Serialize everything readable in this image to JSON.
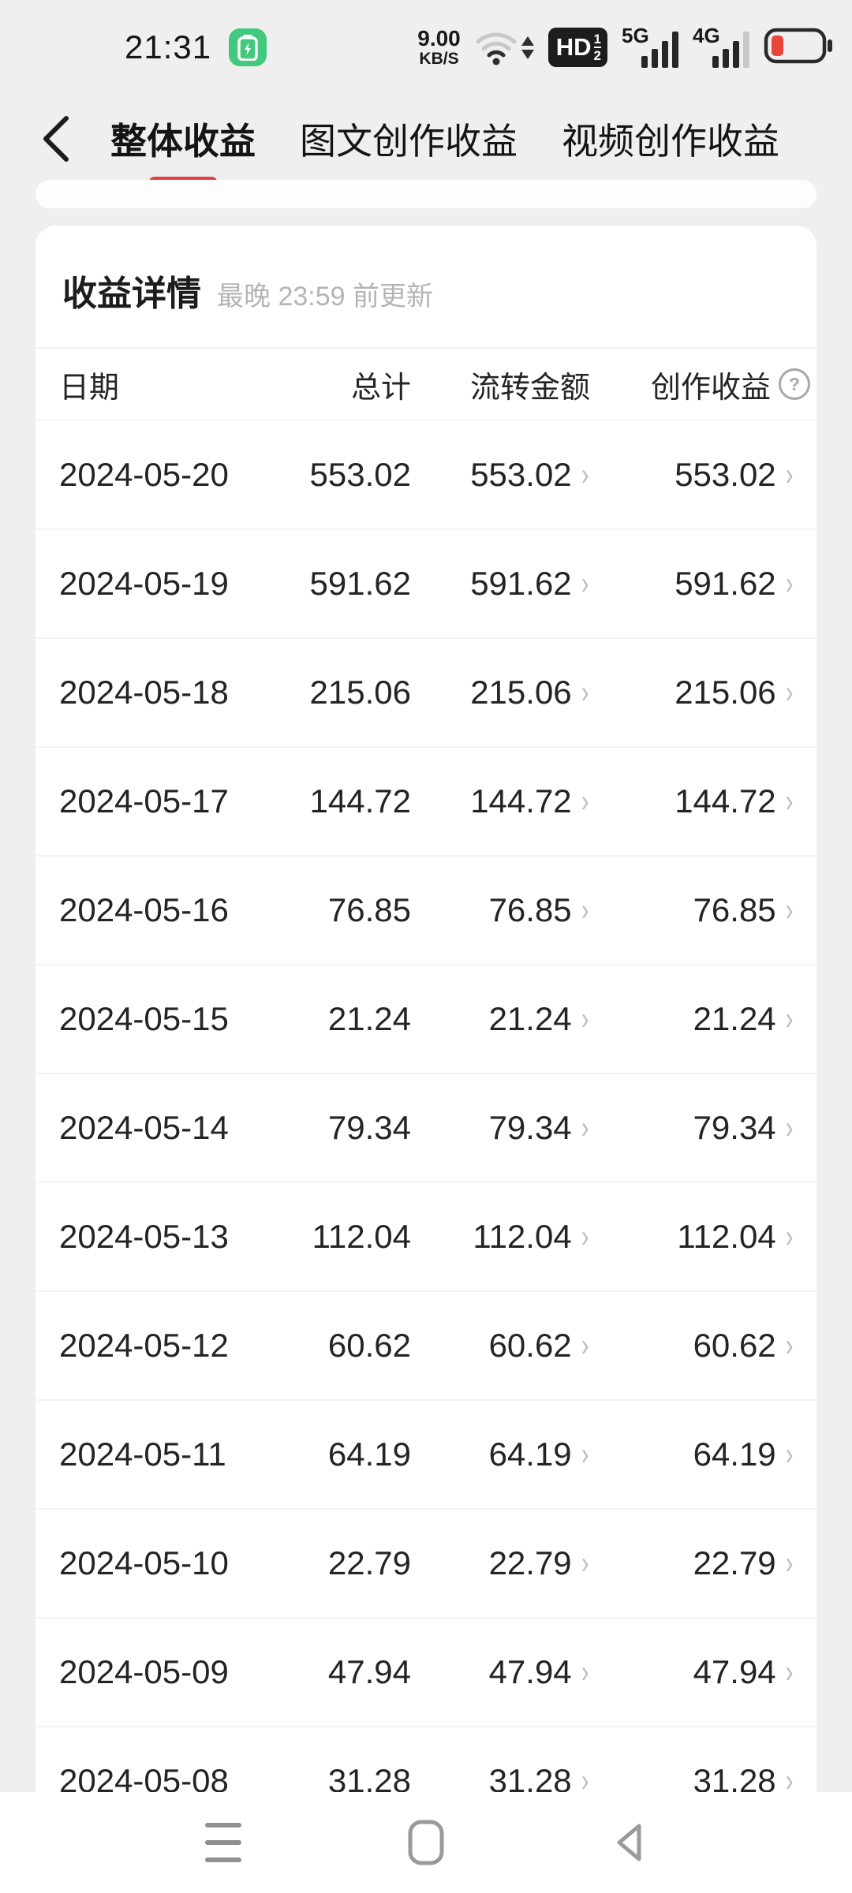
{
  "status_bar": {
    "time": "21:31",
    "net_speed_value": "9.00",
    "net_speed_unit": "KB/S",
    "hd_label": "HD",
    "hd_sup": "1",
    "hd_sub": "2",
    "sim1_label": "5G",
    "sim2_label": "4G"
  },
  "tab_bar": {
    "tabs": [
      {
        "label": "整体收益",
        "active": true
      },
      {
        "label": "图文创作收益",
        "active": false
      },
      {
        "label": "视频创作收益",
        "active": false
      }
    ]
  },
  "card": {
    "title": "收益详情",
    "subtitle": "最晚 23:59 前更新",
    "columns": {
      "date": "日期",
      "total": "总计",
      "transfer": "流转金额",
      "creation": "创作收益"
    },
    "help_icon": "?",
    "chevron": "›",
    "rows": [
      {
        "date": "2024-05-20",
        "total": "553.02",
        "transfer": "553.02",
        "creation": "553.02"
      },
      {
        "date": "2024-05-19",
        "total": "591.62",
        "transfer": "591.62",
        "creation": "591.62"
      },
      {
        "date": "2024-05-18",
        "total": "215.06",
        "transfer": "215.06",
        "creation": "215.06"
      },
      {
        "date": "2024-05-17",
        "total": "144.72",
        "transfer": "144.72",
        "creation": "144.72"
      },
      {
        "date": "2024-05-16",
        "total": "76.85",
        "transfer": "76.85",
        "creation": "76.85"
      },
      {
        "date": "2024-05-15",
        "total": "21.24",
        "transfer": "21.24",
        "creation": "21.24"
      },
      {
        "date": "2024-05-14",
        "total": "79.34",
        "transfer": "79.34",
        "creation": "79.34"
      },
      {
        "date": "2024-05-13",
        "total": "112.04",
        "transfer": "112.04",
        "creation": "112.04"
      },
      {
        "date": "2024-05-12",
        "total": "60.62",
        "transfer": "60.62",
        "creation": "60.62"
      },
      {
        "date": "2024-05-11",
        "total": "64.19",
        "transfer": "64.19",
        "creation": "64.19"
      },
      {
        "date": "2024-05-10",
        "total": "22.79",
        "transfer": "22.79",
        "creation": "22.79"
      },
      {
        "date": "2024-05-09",
        "total": "47.94",
        "transfer": "47.94",
        "creation": "47.94"
      },
      {
        "date": "2024-05-08",
        "total": "31.28",
        "transfer": "31.28",
        "creation": "31.28"
      }
    ]
  },
  "colors": {
    "accent_red": "#e04340",
    "battery_red": "#e8453c",
    "badge_green": "#42c97e",
    "page_bg": "#f0eff0"
  }
}
